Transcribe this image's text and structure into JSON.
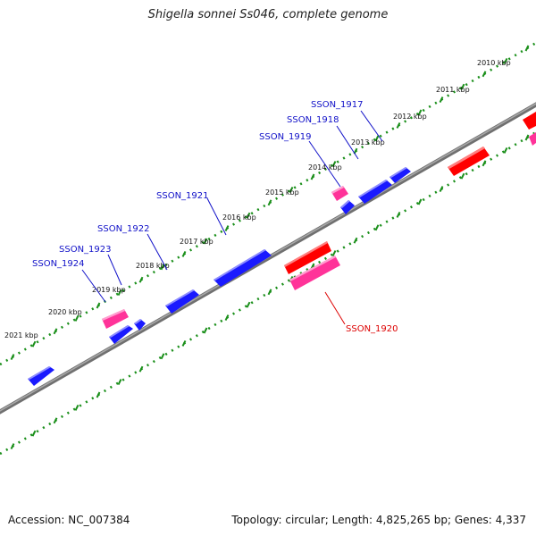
{
  "title": "Shigella sonnei Ss046, complete genome",
  "footer": {
    "accession": "Accession: NC_007384",
    "summary": "Topology: circular; Length: 4,825,265 bp; Genes: 4,337"
  },
  "colors": {
    "forward_gene": "#1a1aff",
    "reverse_gene": "#ff0000",
    "pseudo_gene": "#ff3399",
    "forward_label": "#1010c8",
    "reverse_label": "#dd0000",
    "tick": "#1a8f1a",
    "backbone": "#808080"
  },
  "kbp_labels": [
    "2010 kbp",
    "2011 kbp",
    "2012 kbp",
    "2013 kbp",
    "2014 kbp",
    "2015 kbp",
    "2016 kbp",
    "2017 kbp",
    "2018 kbp",
    "2019 kbp",
    "2020 kbp",
    "2021 kbp"
  ],
  "gene_labels": {
    "forward": [
      "SSON_1917",
      "SSON_1918",
      "SSON_1919",
      "SSON_1921",
      "SSON_1922",
      "SSON_1923",
      "SSON_1924"
    ],
    "reverse": [
      "SSON_1920"
    ]
  }
}
